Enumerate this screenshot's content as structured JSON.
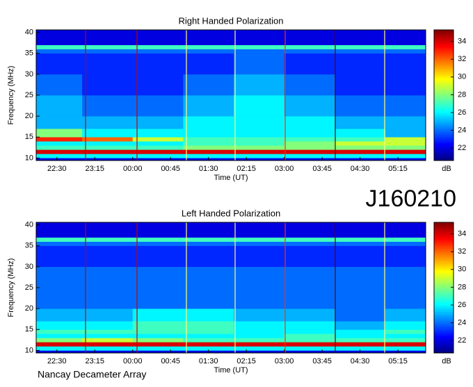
{
  "label": "J160210",
  "footer": "Nancay Decameter Array",
  "chart_data": [
    {
      "type": "heatmap",
      "title": "Right Handed Polarization",
      "xlabel": "Time (UT)",
      "ylabel": "Frequency (MHz)",
      "colormap": "jet",
      "x_edges": [
        22.09,
        23,
        24,
        25,
        26,
        27,
        28,
        29,
        29.8
      ],
      "y_edges": [
        10,
        11,
        12,
        13,
        14,
        15,
        17,
        20,
        25,
        30,
        35,
        36,
        37,
        40
      ],
      "z": [
        [
          26,
          26,
          26,
          26,
          26,
          26,
          26,
          26
        ],
        [
          34,
          34,
          34,
          34,
          34,
          34,
          34,
          34
        ],
        [
          27,
          27,
          27,
          28,
          28,
          28,
          28,
          28
        ],
        [
          26,
          26,
          26,
          27,
          27,
          28,
          29,
          29
        ],
        [
          33,
          32,
          29,
          27,
          27,
          27,
          27,
          29
        ],
        [
          28,
          26,
          26,
          26,
          26,
          26,
          26,
          25
        ],
        [
          25,
          25,
          25,
          26,
          26,
          26,
          25,
          25
        ],
        [
          25,
          24,
          24,
          25,
          26,
          25,
          24,
          24
        ],
        [
          24,
          23,
          23,
          24,
          25,
          24,
          23,
          23
        ],
        [
          23,
          23,
          23,
          23,
          24,
          23,
          23,
          23
        ],
        [
          24,
          24,
          24,
          24,
          24,
          24,
          24,
          24
        ],
        [
          27,
          27,
          27,
          27,
          27,
          27,
          27,
          27
        ],
        [
          22,
          22,
          22,
          22,
          22,
          22,
          22,
          22
        ]
      ],
      "xlim": [
        22.09,
        29.8
      ],
      "ylim": [
        9.4,
        40.6
      ],
      "xticks": [
        {
          "value": 22.5,
          "label": "22:30"
        },
        {
          "value": 23.25,
          "label": "23:15"
        },
        {
          "value": 24,
          "label": "00:00"
        },
        {
          "value": 24.75,
          "label": "00:45"
        },
        {
          "value": 25.5,
          "label": "01:30"
        },
        {
          "value": 26.25,
          "label": "02:15"
        },
        {
          "value": 27,
          "label": "03:00"
        },
        {
          "value": 27.75,
          "label": "03:45"
        },
        {
          "value": 28.5,
          "label": "04:30"
        },
        {
          "value": 29.25,
          "label": "05:15"
        }
      ],
      "yticks": [
        10,
        15,
        20,
        25,
        30,
        35,
        40
      ],
      "colorbar": {
        "label": "dB",
        "lim": [
          20.6,
          35.3
        ],
        "ticks": [
          22,
          24,
          26,
          28,
          30,
          32,
          34
        ]
      }
    },
    {
      "type": "heatmap",
      "title": "Left Handed Polarization",
      "xlabel": "Time (UT)",
      "ylabel": "Frequency (MHz)",
      "colormap": "jet",
      "x_edges": [
        22.09,
        23,
        24,
        25,
        26,
        27,
        28,
        29,
        29.8
      ],
      "y_edges": [
        10,
        11,
        12,
        13,
        14,
        15,
        17,
        20,
        25,
        30,
        35,
        36,
        37,
        40
      ],
      "z": [
        [
          26,
          26,
          26,
          26,
          26,
          26,
          26,
          26
        ],
        [
          34,
          34,
          34,
          34,
          34,
          34,
          34,
          34
        ],
        [
          28,
          29,
          28,
          27,
          27,
          27,
          27,
          27
        ],
        [
          26,
          26,
          26,
          26,
          26,
          27,
          26,
          26
        ],
        [
          27,
          27,
          27,
          27,
          26,
          26,
          26,
          27
        ],
        [
          26,
          26,
          27,
          27,
          26,
          26,
          25,
          26
        ],
        [
          25,
          25,
          26,
          26,
          25,
          25,
          24,
          25
        ],
        [
          24,
          24,
          24,
          24,
          24,
          24,
          24,
          24
        ],
        [
          24,
          24,
          24,
          24,
          24,
          24,
          24,
          24
        ],
        [
          23,
          23,
          23,
          23,
          23,
          23,
          23,
          23
        ],
        [
          24,
          24,
          24,
          24,
          24,
          24,
          24,
          24
        ],
        [
          27,
          27,
          27,
          27,
          27,
          27,
          27,
          27
        ],
        [
          22,
          22,
          22,
          22,
          22,
          22,
          22,
          22
        ]
      ],
      "xlim": [
        22.09,
        29.8
      ],
      "ylim": [
        9.4,
        40.6
      ],
      "xticks": [
        {
          "value": 22.5,
          "label": "22:30"
        },
        {
          "value": 23.25,
          "label": "23:15"
        },
        {
          "value": 24,
          "label": "00:00"
        },
        {
          "value": 24.75,
          "label": "00:45"
        },
        {
          "value": 25.5,
          "label": "01:30"
        },
        {
          "value": 26.25,
          "label": "02:15"
        },
        {
          "value": 27,
          "label": "03:00"
        },
        {
          "value": 27.75,
          "label": "03:45"
        },
        {
          "value": 28.5,
          "label": "04:30"
        },
        {
          "value": 29.25,
          "label": "05:15"
        }
      ],
      "yticks": [
        10,
        15,
        20,
        25,
        30,
        35,
        40
      ],
      "colorbar": {
        "label": "dB",
        "lim": [
          20.6,
          35.3
        ],
        "ticks": [
          22,
          24,
          26,
          28,
          30,
          32,
          34
        ]
      }
    }
  ]
}
